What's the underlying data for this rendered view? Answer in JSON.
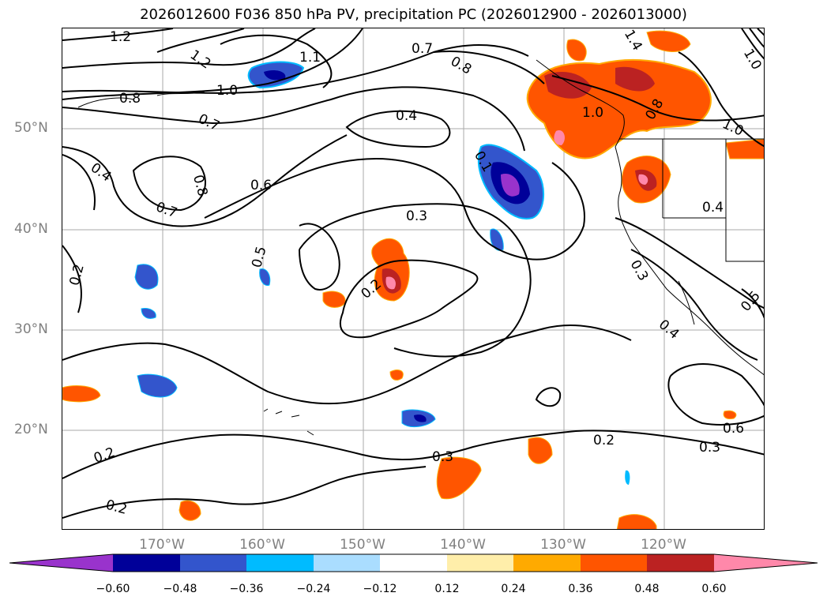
{
  "title": "2026012600 F036 850 hPa PV, precipitation PC (2026012900 - 2026013000)",
  "map": {
    "lat_labels": [
      "50°N",
      "40°N",
      "30°N",
      "20°N"
    ],
    "lon_labels": [
      "170°W",
      "160°W",
      "150°W",
      "140°W",
      "130°W",
      "120°W"
    ],
    "contour_labels": [
      "1.2",
      "1.2",
      "1.1",
      "1.0",
      "0.8",
      "0.7",
      "0.7",
      "0.8",
      "0.8",
      "0.4",
      "0.4",
      "0.6",
      "0.7",
      "0.3",
      "0.5",
      "0.2",
      "0.2",
      "0.2",
      "0.3",
      "0.2",
      "0.2",
      "0.1",
      "1.0",
      "0.8",
      "1.0",
      "0.4",
      "0.3",
      "0.4",
      "0.5",
      "0.6",
      "0.3",
      "1.0",
      "1.4"
    ],
    "colors": {
      "neg_060": "#9933cc",
      "neg_048": "#000099",
      "neg_036": "#3355cc",
      "neg_024": "#00bbff",
      "neg_012": "#aaddff",
      "pos_012": "#ffeeaa",
      "pos_024": "#ffaa00",
      "pos_036": "#ff5500",
      "pos_048": "#bb2222",
      "pos_060": "#ff88aa"
    }
  },
  "colorbar": {
    "ticks": [
      "−0.60",
      "−0.48",
      "−0.36",
      "−0.24",
      "−0.12",
      "0.12",
      "0.24",
      "0.36",
      "0.48",
      "0.60"
    ],
    "colors": [
      "#9933cc",
      "#000099",
      "#3355cc",
      "#00bbff",
      "#aaddff",
      "#ffffff",
      "#ffeeaa",
      "#ffaa00",
      "#ff5500",
      "#bb2222",
      "#ff88aa"
    ]
  }
}
